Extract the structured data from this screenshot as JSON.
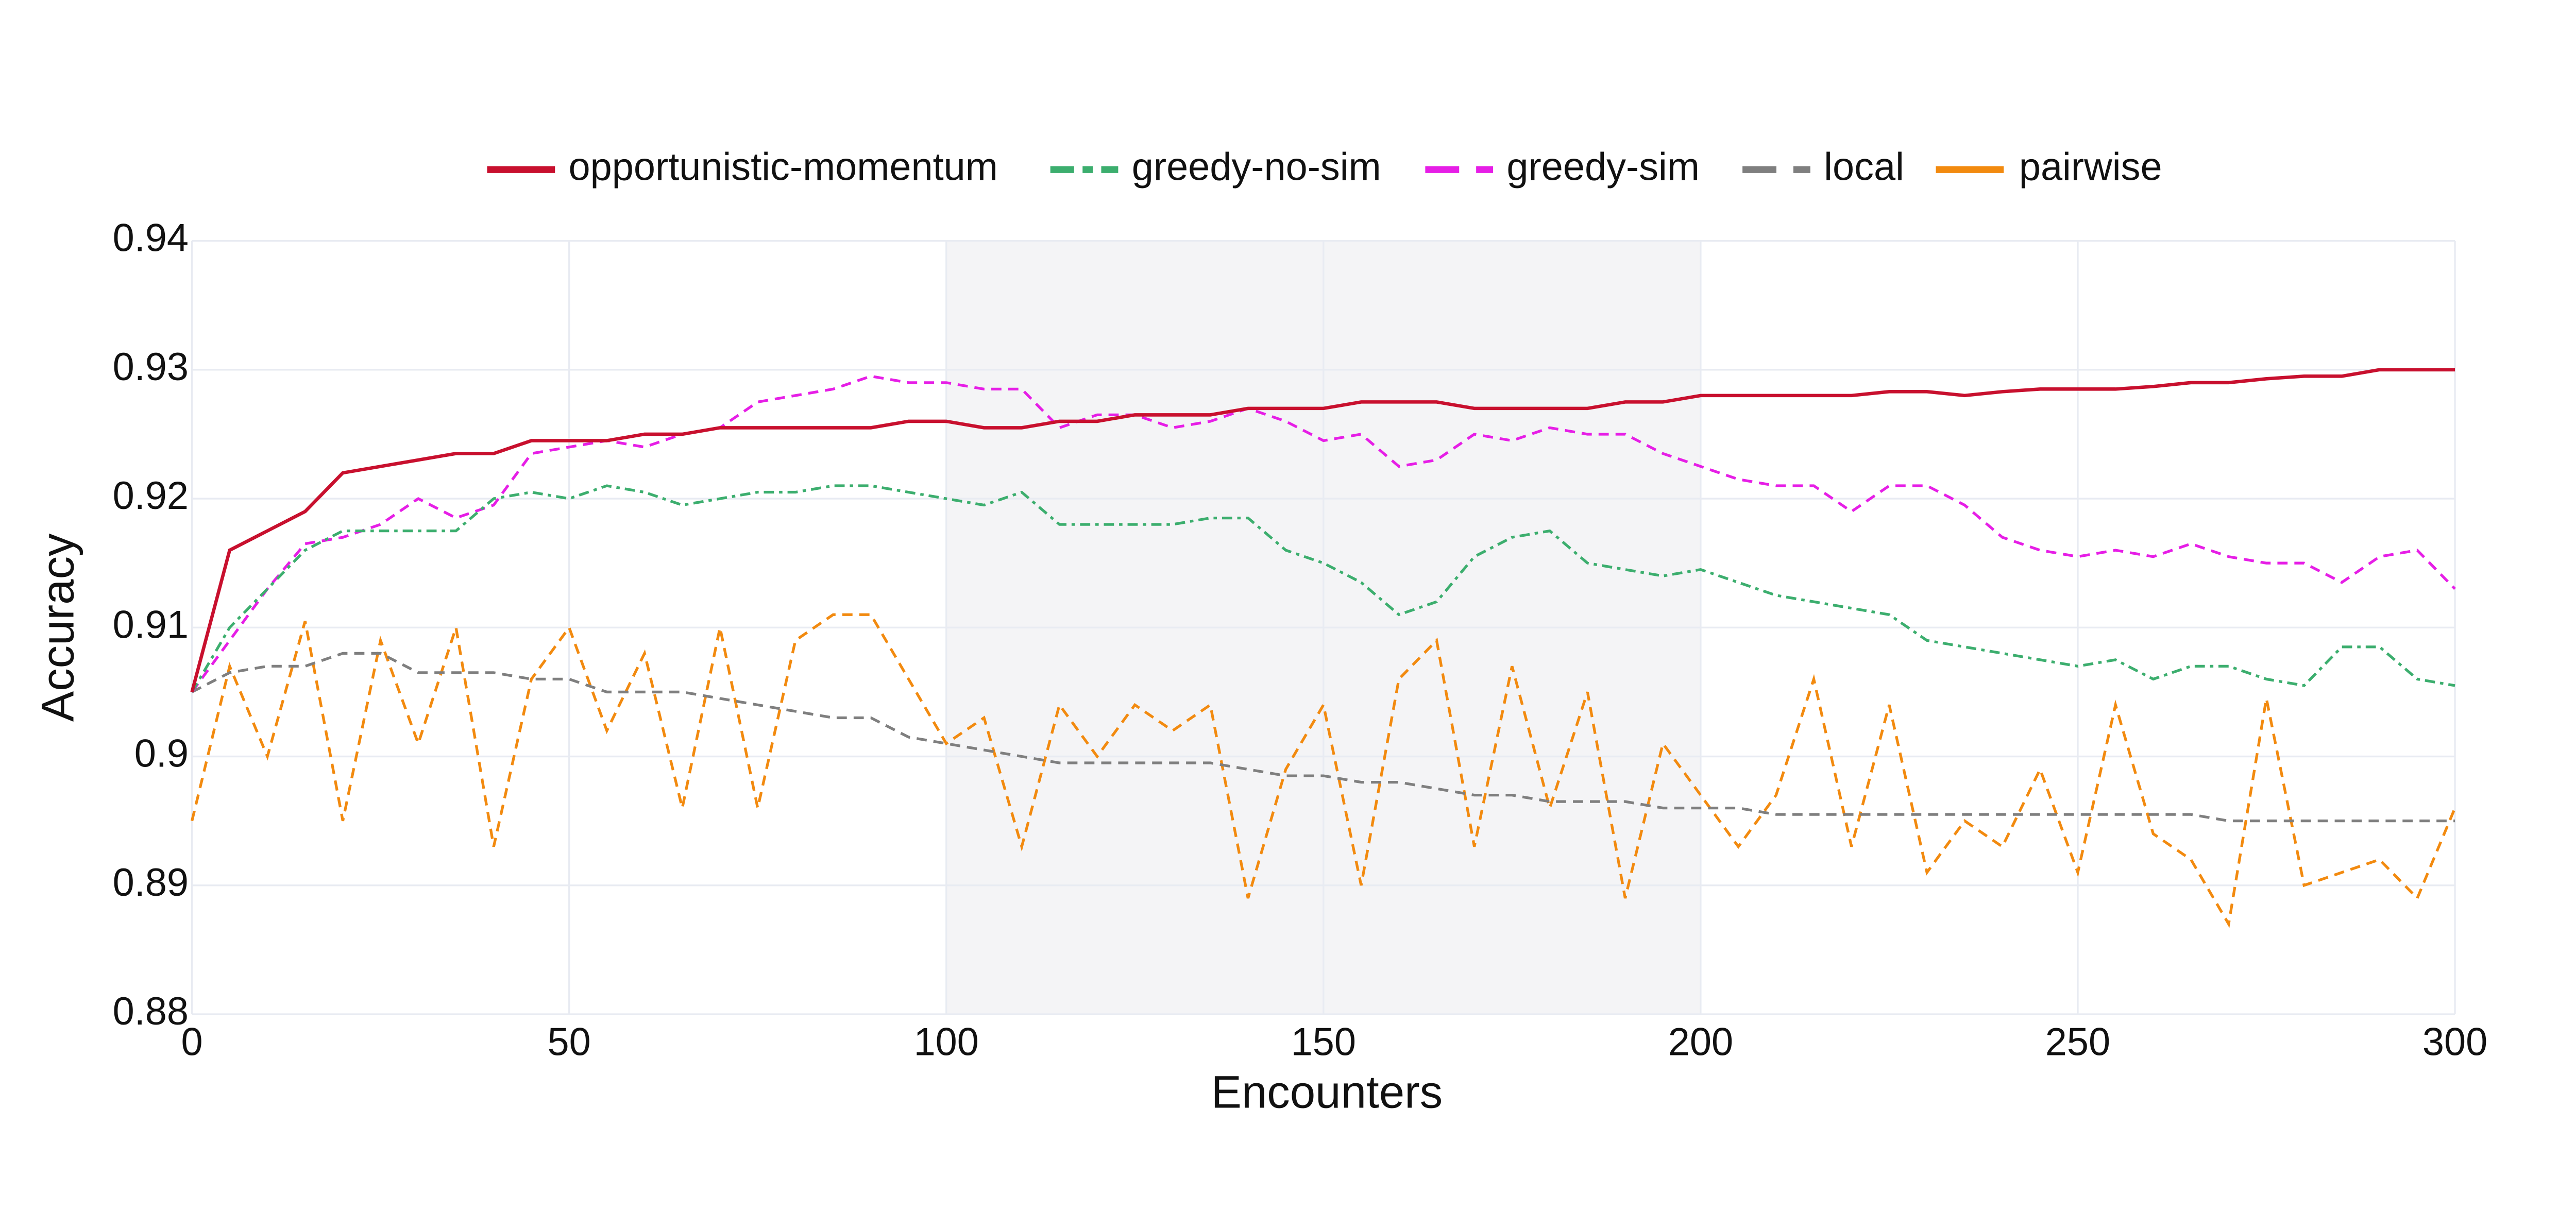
{
  "chart_data": {
    "type": "line",
    "x_label": "Encounters",
    "y_label": "Accuracy",
    "xlim": [
      0,
      300
    ],
    "ylim": [
      0.88,
      0.94
    ],
    "xticks": [
      0,
      50,
      100,
      150,
      200,
      250,
      300
    ],
    "yticks": [
      0.88,
      0.89,
      0.9,
      0.91,
      0.92,
      0.93,
      0.94
    ],
    "grid": true,
    "legend": "top",
    "shaded_region": [
      100,
      200
    ],
    "x": [
      0,
      5,
      10,
      15,
      20,
      25,
      30,
      35,
      40,
      45,
      50,
      55,
      60,
      65,
      70,
      75,
      80,
      85,
      90,
      95,
      100,
      105,
      110,
      115,
      120,
      125,
      130,
      135,
      140,
      145,
      150,
      155,
      160,
      165,
      170,
      175,
      180,
      185,
      190,
      195,
      200,
      205,
      210,
      215,
      220,
      225,
      230,
      235,
      240,
      245,
      250,
      255,
      260,
      265,
      270,
      275,
      280,
      285,
      290,
      295,
      300
    ],
    "series": [
      {
        "name": "opportunistic-momentum",
        "color": "#c8102e",
        "dash": "solid",
        "values": [
          0.905,
          0.916,
          0.9175,
          0.919,
          0.922,
          0.9225,
          0.923,
          0.9235,
          0.9235,
          0.9245,
          0.9245,
          0.9245,
          0.925,
          0.925,
          0.9255,
          0.9255,
          0.9255,
          0.9255,
          0.9255,
          0.926,
          0.926,
          0.9255,
          0.9255,
          0.926,
          0.926,
          0.9265,
          0.9265,
          0.9265,
          0.927,
          0.927,
          0.927,
          0.9275,
          0.9275,
          0.9275,
          0.927,
          0.927,
          0.927,
          0.927,
          0.9275,
          0.9275,
          0.928,
          0.928,
          0.928,
          0.928,
          0.928,
          0.9283,
          0.9283,
          0.928,
          0.9283,
          0.9285,
          0.9285,
          0.9285,
          0.9287,
          0.929,
          0.929,
          0.9293,
          0.9295,
          0.9295,
          0.93,
          0.93,
          0.93
        ]
      },
      {
        "name": "greedy-no-sim",
        "color": "#3cae6e",
        "dash": "dashdot",
        "values": [
          0.905,
          0.91,
          0.913,
          0.916,
          0.9175,
          0.9175,
          0.9175,
          0.9175,
          0.92,
          0.9205,
          0.92,
          0.921,
          0.9205,
          0.9195,
          0.92,
          0.9205,
          0.9205,
          0.921,
          0.921,
          0.9205,
          0.92,
          0.9195,
          0.9205,
          0.918,
          0.918,
          0.918,
          0.918,
          0.9185,
          0.9185,
          0.916,
          0.915,
          0.9135,
          0.911,
          0.912,
          0.9155,
          0.917,
          0.9175,
          0.915,
          0.9145,
          0.914,
          0.9145,
          0.9135,
          0.9125,
          0.912,
          0.9115,
          0.911,
          0.909,
          0.9085,
          0.908,
          0.9075,
          0.907,
          0.9075,
          0.906,
          0.907,
          0.907,
          0.906,
          0.9055,
          0.9085,
          0.9085,
          0.906,
          0.9055
        ]
      },
      {
        "name": "greedy-sim",
        "color": "#e61ee6",
        "dash": "dash",
        "values": [
          0.905,
          0.909,
          0.913,
          0.9165,
          0.917,
          0.918,
          0.92,
          0.9185,
          0.9195,
          0.9235,
          0.924,
          0.9245,
          0.924,
          0.925,
          0.9255,
          0.9275,
          0.928,
          0.9285,
          0.9295,
          0.929,
          0.929,
          0.9285,
          0.9285,
          0.9255,
          0.9265,
          0.9265,
          0.9255,
          0.926,
          0.927,
          0.926,
          0.9245,
          0.925,
          0.9225,
          0.923,
          0.925,
          0.9245,
          0.9255,
          0.925,
          0.925,
          0.9235,
          0.9225,
          0.9215,
          0.921,
          0.921,
          0.919,
          0.921,
          0.921,
          0.9195,
          0.917,
          0.916,
          0.9155,
          0.916,
          0.9155,
          0.9165,
          0.9155,
          0.915,
          0.915,
          0.9135,
          0.9155,
          0.916,
          0.913
        ]
      },
      {
        "name": "local",
        "color": "#7f7f7f",
        "dash": "dash",
        "values": [
          0.905,
          0.9065,
          0.907,
          0.907,
          0.908,
          0.908,
          0.9065,
          0.9065,
          0.9065,
          0.906,
          0.906,
          0.905,
          0.905,
          0.905,
          0.9045,
          0.904,
          0.9035,
          0.903,
          0.903,
          0.9015,
          0.901,
          0.9005,
          0.9,
          0.8995,
          0.8995,
          0.8995,
          0.8995,
          0.8995,
          0.899,
          0.8985,
          0.8985,
          0.898,
          0.898,
          0.8975,
          0.897,
          0.897,
          0.8965,
          0.8965,
          0.8965,
          0.896,
          0.896,
          0.896,
          0.8955,
          0.8955,
          0.8955,
          0.8955,
          0.8955,
          0.8955,
          0.8955,
          0.8955,
          0.8955,
          0.8955,
          0.8955,
          0.8955,
          0.895,
          0.895,
          0.895,
          0.895,
          0.895,
          0.895,
          0.895
        ]
      },
      {
        "name": "pairwise",
        "color": "#f28a0f",
        "dash": "dash",
        "values": [
          0.895,
          0.907,
          0.9,
          0.9105,
          0.895,
          0.909,
          0.901,
          0.91,
          0.893,
          0.906,
          0.91,
          0.902,
          0.908,
          0.896,
          0.91,
          0.896,
          0.909,
          0.911,
          0.911,
          0.906,
          0.901,
          0.903,
          0.893,
          0.904,
          0.9,
          0.904,
          0.902,
          0.904,
          0.889,
          0.899,
          0.904,
          0.89,
          0.906,
          0.909,
          0.893,
          0.907,
          0.896,
          0.905,
          0.889,
          0.901,
          0.897,
          0.893,
          0.897,
          0.906,
          0.893,
          0.904,
          0.891,
          0.895,
          0.893,
          0.899,
          0.891,
          0.904,
          0.894,
          0.892,
          0.887,
          0.9045,
          0.89,
          0.891,
          0.892,
          0.889,
          0.896
        ]
      }
    ]
  }
}
